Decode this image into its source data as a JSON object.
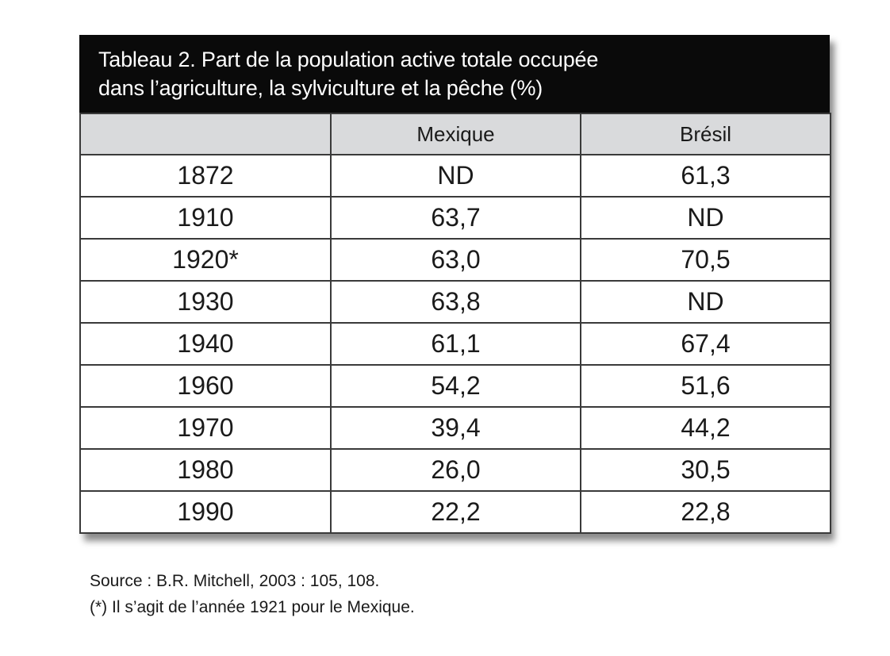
{
  "title": {
    "line1": "Tableau 2. Part de la population active totale occupée",
    "line2": "dans l’agriculture, la sylviculture et la pêche (%)"
  },
  "columns": [
    "",
    "Mexique",
    "Brésil"
  ],
  "rows": [
    [
      "1872",
      "ND",
      "61,3"
    ],
    [
      "1910",
      "63,7",
      "ND"
    ],
    [
      "1920*",
      "63,0",
      "70,5"
    ],
    [
      "1930",
      "63,8",
      "ND"
    ],
    [
      "1940",
      "61,1",
      "67,4"
    ],
    [
      "1960",
      "54,2",
      "51,6"
    ],
    [
      "1970",
      "39,4",
      "44,2"
    ],
    [
      "1980",
      "26,0",
      "30,5"
    ],
    [
      "1990",
      "22,2",
      "22,8"
    ]
  ],
  "notes": {
    "source": "Source : B.R. Mitchell, 2003 : 105, 108.",
    "footnote": "(*) Il s’agit de l’année 1921 pour le Mexique."
  },
  "colors": {
    "title_bg": "#0a0a0a",
    "header_bg": "#d9dadc"
  }
}
